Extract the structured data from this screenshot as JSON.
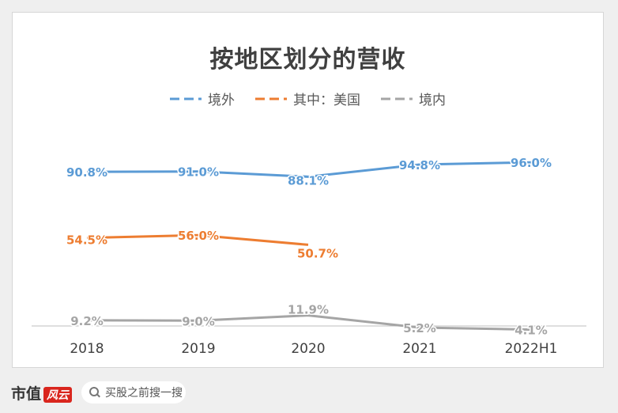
{
  "chart_data": {
    "type": "line",
    "title": "按地区划分的营收",
    "categories": [
      "2018",
      "2019",
      "2020",
      "2021",
      "2022H1"
    ],
    "series": [
      {
        "name": "境外",
        "color": "#5b9bd5",
        "values": [
          90.8,
          91.0,
          88.1,
          94.8,
          96.0
        ],
        "labels": [
          "90.8%",
          "91.0%",
          "88.1%",
          "94.8%",
          "96.0%"
        ]
      },
      {
        "name": "其中：美国",
        "color": "#ed7d31",
        "values": [
          54.5,
          56.0,
          50.7,
          null,
          null
        ],
        "labels": [
          "54.5%",
          "56.0%",
          "50.7%",
          "",
          ""
        ]
      },
      {
        "name": "境内",
        "color": "#a5a5a5",
        "values": [
          9.2,
          9.0,
          11.9,
          5.2,
          4.1
        ],
        "labels": [
          "9.2%",
          "9.0%",
          "11.9%",
          "5.2%",
          "4.1%"
        ]
      }
    ],
    "grid": false,
    "legend": "top-center"
  },
  "footer": {
    "brand": "市值",
    "brand_mark": "风云",
    "search_placeholder": "买股之前搜一搜"
  }
}
